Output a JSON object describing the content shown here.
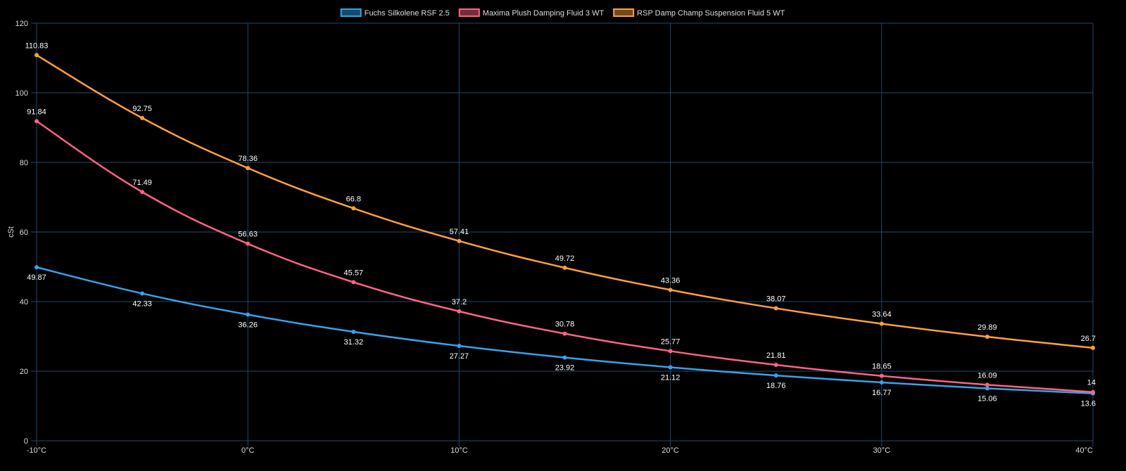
{
  "chart_data": {
    "type": "line",
    "title": "",
    "xlabel": "",
    "ylabel": "cSt",
    "ylim": [
      0,
      120
    ],
    "yticks": [
      0,
      20,
      40,
      60,
      80,
      100,
      120
    ],
    "grid": true,
    "legend": "top",
    "categories": [
      "-10°C",
      "-5°C",
      "0°C",
      "5°C",
      "10°C",
      "15°C",
      "20°C",
      "25°C",
      "30°C",
      "35°C",
      "40°C"
    ],
    "xtick_labels_shown": [
      "-10°C",
      "0°C",
      "10°C",
      "20°C",
      "30°C",
      "40°C"
    ],
    "series": [
      {
        "name": "Fuchs Silkolene RSF 2.5",
        "color": "#36a2eb",
        "values": [
          49.87,
          42.33,
          36.26,
          31.32,
          27.27,
          23.92,
          21.12,
          18.76,
          16.77,
          15.06,
          13.6
        ]
      },
      {
        "name": "Maxima Plush Damping Fluid 3 WT",
        "color": "#ff6384",
        "values": [
          91.84,
          71.49,
          56.63,
          45.57,
          37.2,
          30.78,
          25.77,
          21.81,
          18.65,
          16.09,
          14
        ]
      },
      {
        "name": "RSP Damp Champ Suspension Fluid 5 WT",
        "color": "#ff9f40",
        "values": [
          110.83,
          92.75,
          78.36,
          66.8,
          57.41,
          49.72,
          43.36,
          38.07,
          33.64,
          29.89,
          26.7
        ]
      }
    ]
  }
}
